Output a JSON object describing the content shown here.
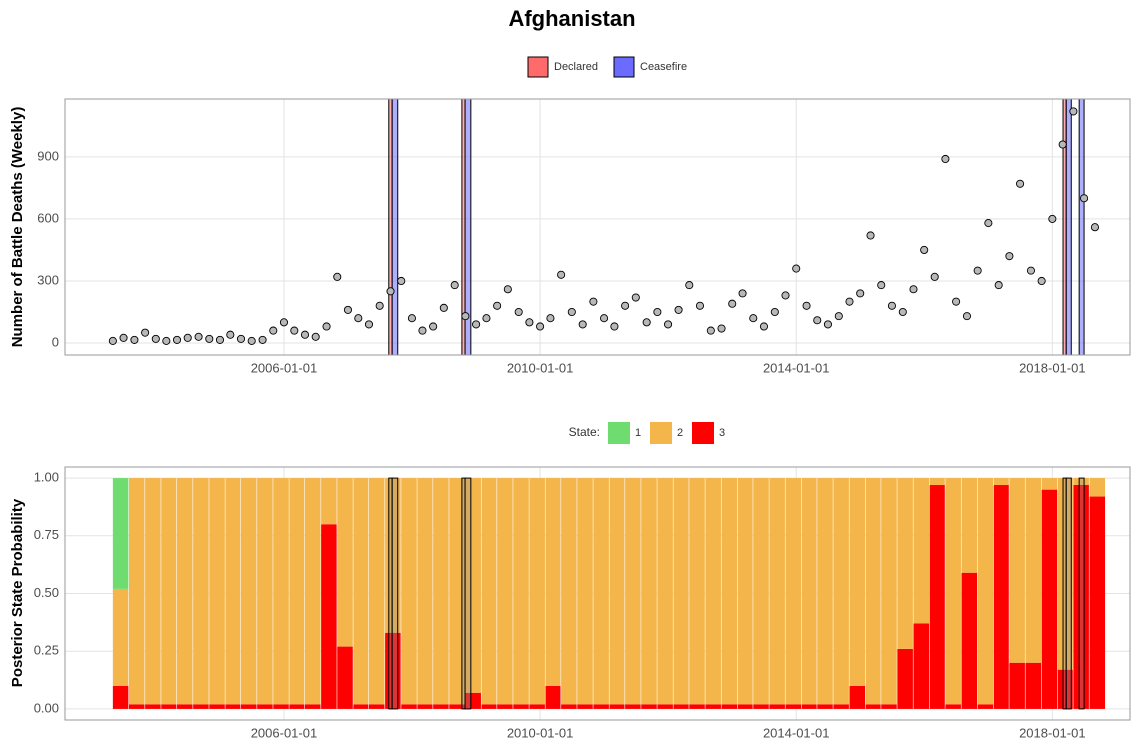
{
  "chart_data": [
    {
      "type": "scatter",
      "title": "Afghanistan",
      "y_label": "Number of Battle Deaths (Weekly)",
      "xlim": [
        "2002-08-01",
        "2019-03-20"
      ],
      "xticks": [
        "2006-01-01",
        "2010-01-01",
        "2014-01-01",
        "2018-01-01"
      ],
      "ylim": [
        -58,
        1180
      ],
      "yticks": [
        0,
        300,
        600,
        900
      ],
      "grid": true,
      "point_color": "#b8b8b8",
      "bands": [
        {
          "name": "Declared",
          "color": "#ff6b6b",
          "ranges": [
            [
              "2007-08-22",
              "2007-09-10"
            ],
            [
              "2008-10-12",
              "2008-10-30"
            ],
            [
              "2018-03-03",
              "2018-03-21"
            ]
          ]
        },
        {
          "name": "Ceasefire",
          "color": "#6b6bff",
          "ranges": [
            [
              "2007-09-10",
              "2007-10-12"
            ],
            [
              "2008-10-30",
              "2008-12-02"
            ],
            [
              "2018-03-21",
              "2018-04-19"
            ],
            [
              "2018-06-03",
              "2018-07-01"
            ]
          ]
        }
      ],
      "x": [
        "2003-05-01",
        "2003-07-01",
        "2003-09-01",
        "2003-11-01",
        "2004-01-01",
        "2004-03-01",
        "2004-05-01",
        "2004-07-01",
        "2004-09-01",
        "2004-11-01",
        "2005-01-01",
        "2005-03-01",
        "2005-05-01",
        "2005-07-01",
        "2005-09-01",
        "2005-11-01",
        "2006-01-01",
        "2006-03-01",
        "2006-05-01",
        "2006-07-01",
        "2006-09-01",
        "2006-11-01",
        "2007-01-01",
        "2007-03-01",
        "2007-05-01",
        "2007-07-01",
        "2007-09-01",
        "2007-11-01",
        "2008-01-01",
        "2008-03-01",
        "2008-05-01",
        "2008-07-01",
        "2008-09-01",
        "2008-11-01",
        "2009-01-01",
        "2009-03-01",
        "2009-05-01",
        "2009-07-01",
        "2009-09-01",
        "2009-11-01",
        "2010-01-01",
        "2010-03-01",
        "2010-05-01",
        "2010-07-01",
        "2010-09-01",
        "2010-11-01",
        "2011-01-01",
        "2011-03-01",
        "2011-05-01",
        "2011-07-01",
        "2011-09-01",
        "2011-11-01",
        "2012-01-01",
        "2012-03-01",
        "2012-05-01",
        "2012-07-01",
        "2012-09-01",
        "2012-11-01",
        "2013-01-01",
        "2013-03-01",
        "2013-05-01",
        "2013-07-01",
        "2013-09-01",
        "2013-11-01",
        "2014-01-01",
        "2014-03-01",
        "2014-05-01",
        "2014-07-01",
        "2014-09-01",
        "2014-11-01",
        "2015-01-01",
        "2015-03-01",
        "2015-05-01",
        "2015-07-01",
        "2015-09-01",
        "2015-11-01",
        "2016-01-01",
        "2016-03-01",
        "2016-05-01",
        "2016-07-01",
        "2016-09-01",
        "2016-11-01",
        "2017-01-01",
        "2017-03-01",
        "2017-05-01",
        "2017-07-01",
        "2017-09-01",
        "2017-11-01",
        "2018-01-01",
        "2018-03-01",
        "2018-05-01",
        "2018-07-01",
        "2018-09-01"
      ],
      "values": [
        10,
        25,
        15,
        50,
        20,
        10,
        15,
        25,
        30,
        20,
        15,
        40,
        20,
        10,
        15,
        60,
        100,
        60,
        40,
        30,
        80,
        320,
        160,
        120,
        90,
        180,
        250,
        300,
        120,
        60,
        80,
        170,
        280,
        130,
        90,
        120,
        180,
        260,
        150,
        100,
        80,
        120,
        330,
        150,
        90,
        200,
        120,
        80,
        180,
        220,
        100,
        150,
        90,
        160,
        280,
        180,
        60,
        70,
        190,
        240,
        120,
        80,
        150,
        230,
        360,
        180,
        110,
        90,
        130,
        200,
        240,
        520,
        280,
        180,
        150,
        260,
        450,
        320,
        890,
        200,
        130,
        350,
        580,
        280,
        420,
        770,
        350,
        300,
        600,
        960,
        1120,
        700,
        560
      ]
    },
    {
      "type": "stacked_bar",
      "y_label": "Posterior State Probability",
      "legend_title": "State:",
      "xlim": [
        "2002-08-01",
        "2019-03-20"
      ],
      "xticks": [
        "2006-01-01",
        "2010-01-01",
        "2014-01-01",
        "2018-01-01"
      ],
      "ylim": [
        -0.048,
        1.048
      ],
      "yticks": [
        {
          "value": 0,
          "label": "0.00"
        },
        {
          "value": 0.25,
          "label": "0.25"
        },
        {
          "value": 0.5,
          "label": "0.50"
        },
        {
          "value": 0.75,
          "label": "0.75"
        },
        {
          "value": 1,
          "label": "1.00"
        }
      ],
      "grid": true,
      "x": [
        "2003-05-01",
        "2003-08-01",
        "2003-11-01",
        "2004-02-01",
        "2004-05-01",
        "2004-08-01",
        "2004-11-01",
        "2005-02-01",
        "2005-05-01",
        "2005-08-01",
        "2005-11-01",
        "2006-02-01",
        "2006-05-01",
        "2006-08-01",
        "2006-11-01",
        "2007-02-01",
        "2007-05-01",
        "2007-08-01",
        "2007-11-01",
        "2008-02-01",
        "2008-05-01",
        "2008-08-01",
        "2008-11-01",
        "2009-02-01",
        "2009-05-01",
        "2009-08-01",
        "2009-11-01",
        "2010-02-01",
        "2010-05-01",
        "2010-08-01",
        "2010-11-01",
        "2011-02-01",
        "2011-05-01",
        "2011-08-01",
        "2011-11-01",
        "2012-02-01",
        "2012-05-01",
        "2012-08-01",
        "2012-11-01",
        "2013-02-01",
        "2013-05-01",
        "2013-08-01",
        "2013-11-01",
        "2014-02-01",
        "2014-05-01",
        "2014-08-01",
        "2014-11-01",
        "2015-02-01",
        "2015-05-01",
        "2015-08-01",
        "2015-11-01",
        "2016-02-01",
        "2016-05-01",
        "2016-08-01",
        "2016-11-01",
        "2017-02-01",
        "2017-05-01",
        "2017-08-01",
        "2017-11-01",
        "2018-02-01",
        "2018-05-01",
        "2018-08-01"
      ],
      "series": [
        {
          "name": "1",
          "color": "#6fdc6f",
          "values": [
            0.48,
            0,
            0,
            0,
            0,
            0,
            0,
            0,
            0,
            0,
            0,
            0,
            0,
            0,
            0,
            0,
            0,
            0,
            0,
            0,
            0,
            0,
            0,
            0,
            0,
            0,
            0,
            0,
            0,
            0,
            0,
            0,
            0,
            0,
            0,
            0,
            0,
            0,
            0,
            0,
            0,
            0,
            0,
            0,
            0,
            0,
            0,
            0,
            0,
            0,
            0,
            0,
            0,
            0,
            0,
            0,
            0,
            0,
            0,
            0,
            0,
            0
          ]
        },
        {
          "name": "2",
          "color": "#f4b54a",
          "values": [
            0.42,
            0.98,
            0.98,
            0.98,
            0.98,
            0.98,
            0.98,
            0.98,
            0.98,
            0.98,
            0.98,
            0.98,
            0.98,
            0.2,
            0.73,
            0.98,
            0.98,
            0.67,
            0.98,
            0.98,
            0.98,
            0.98,
            0.93,
            0.98,
            0.98,
            0.98,
            0.98,
            0.9,
            0.98,
            0.98,
            0.98,
            0.98,
            0.98,
            0.98,
            0.98,
            0.98,
            0.98,
            0.98,
            0.98,
            0.98,
            0.98,
            0.98,
            0.98,
            0.98,
            0.98,
            0.98,
            0.9,
            0.98,
            0.98,
            0.74,
            0.63,
            0.03,
            0.98,
            0.41,
            0.98,
            0.03,
            0.8,
            0.8,
            0.05,
            0.83,
            0.03,
            0.08
          ]
        },
        {
          "name": "3",
          "color": "#ff0000",
          "values": [
            0.1,
            0.02,
            0.02,
            0.02,
            0.02,
            0.02,
            0.02,
            0.02,
            0.02,
            0.02,
            0.02,
            0.02,
            0.02,
            0.8,
            0.27,
            0.02,
            0.02,
            0.33,
            0.02,
            0.02,
            0.02,
            0.02,
            0.07,
            0.02,
            0.02,
            0.02,
            0.02,
            0.1,
            0.02,
            0.02,
            0.02,
            0.02,
            0.02,
            0.02,
            0.02,
            0.02,
            0.02,
            0.02,
            0.02,
            0.02,
            0.02,
            0.02,
            0.02,
            0.02,
            0.02,
            0.02,
            0.1,
            0.02,
            0.02,
            0.26,
            0.37,
            0.97,
            0.02,
            0.59,
            0.02,
            0.97,
            0.2,
            0.2,
            0.95,
            0.17,
            0.97,
            0.92
          ]
        }
      ]
    }
  ]
}
